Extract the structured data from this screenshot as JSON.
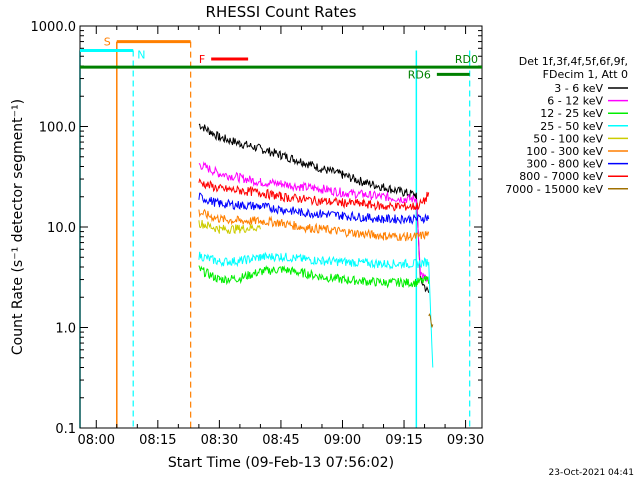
{
  "chart_data": {
    "type": "line",
    "title": "RHESSI Count Rates",
    "xlabel": "Start Time (09-Feb-13 07:56:02)",
    "ylabel": "Count Rate (s⁻¹ detector segment⁻¹)",
    "xscale": "time",
    "yscale": "log",
    "xlim": [
      "07:56:02",
      "09:34:00"
    ],
    "ylim": [
      0.1,
      1000
    ],
    "x_ticks": [
      "08:00",
      "08:15",
      "08:30",
      "08:45",
      "09:00",
      "09:15",
      "09:30"
    ],
    "y_ticks": [
      "0.1",
      "1.0",
      "10.0",
      "100.0",
      "1000.0"
    ],
    "grid": false,
    "legend": {
      "position": "right",
      "header": [
        "Det 1f,3f,4f,5f,6f,9f,",
        "FDecim 1, Att 0"
      ]
    },
    "series": [
      {
        "name": "3 - 6 keV",
        "color": "#000000",
        "values": [
          {
            "x": "08:25",
            "y": 105
          },
          {
            "x": "08:30",
            "y": 78
          },
          {
            "x": "08:35",
            "y": 68
          },
          {
            "x": "08:40",
            "y": 60
          },
          {
            "x": "08:45",
            "y": 52
          },
          {
            "x": "08:50",
            "y": 45
          },
          {
            "x": "08:55",
            "y": 38
          },
          {
            "x": "09:00",
            "y": 33
          },
          {
            "x": "09:05",
            "y": 28
          },
          {
            "x": "09:10",
            "y": 25
          },
          {
            "x": "09:15",
            "y": 22
          },
          {
            "x": "09:18",
            "y": 21
          },
          {
            "x": "09:19",
            "y": 3
          },
          {
            "x": "09:21",
            "y": 2.2
          }
        ]
      },
      {
        "name": "6 - 12 keV",
        "color": "#ff00ff",
        "values": [
          {
            "x": "08:25",
            "y": 42
          },
          {
            "x": "08:30",
            "y": 34
          },
          {
            "x": "08:35",
            "y": 31
          },
          {
            "x": "08:40",
            "y": 28
          },
          {
            "x": "08:45",
            "y": 27
          },
          {
            "x": "08:50",
            "y": 25
          },
          {
            "x": "08:55",
            "y": 24
          },
          {
            "x": "09:00",
            "y": 22
          },
          {
            "x": "09:05",
            "y": 21
          },
          {
            "x": "09:10",
            "y": 20
          },
          {
            "x": "09:15",
            "y": 19
          },
          {
            "x": "09:18",
            "y": 19
          },
          {
            "x": "09:19",
            "y": 3.5
          },
          {
            "x": "09:21",
            "y": 2.8
          }
        ]
      },
      {
        "name": "12 - 25 keV",
        "color": "#00ee00",
        "values": [
          {
            "x": "08:25",
            "y": 3.8
          },
          {
            "x": "08:30",
            "y": 3.0
          },
          {
            "x": "08:35",
            "y": 3.1
          },
          {
            "x": "08:40",
            "y": 3.6
          },
          {
            "x": "08:45",
            "y": 3.8
          },
          {
            "x": "08:50",
            "y": 3.5
          },
          {
            "x": "08:55",
            "y": 3.2
          },
          {
            "x": "09:00",
            "y": 3.0
          },
          {
            "x": "09:05",
            "y": 2.9
          },
          {
            "x": "09:10",
            "y": 2.8
          },
          {
            "x": "09:15",
            "y": 2.8
          },
          {
            "x": "09:18",
            "y": 2.8
          },
          {
            "x": "09:21",
            "y": 3.0
          }
        ]
      },
      {
        "name": "25 - 50 keV",
        "color": "#00ffff",
        "values": [
          {
            "x": "08:25",
            "y": 5.2
          },
          {
            "x": "08:30",
            "y": 4.5
          },
          {
            "x": "08:35",
            "y": 4.6
          },
          {
            "x": "08:40",
            "y": 5.0
          },
          {
            "x": "08:45",
            "y": 5.1
          },
          {
            "x": "08:50",
            "y": 4.8
          },
          {
            "x": "08:55",
            "y": 4.6
          },
          {
            "x": "09:00",
            "y": 4.5
          },
          {
            "x": "09:05",
            "y": 4.4
          },
          {
            "x": "09:10",
            "y": 4.3
          },
          {
            "x": "09:15",
            "y": 4.3
          },
          {
            "x": "09:18",
            "y": 4.3
          },
          {
            "x": "09:21",
            "y": 4.5
          },
          {
            "x": "09:22",
            "y": 0.4
          }
        ]
      },
      {
        "name": "50 - 100 keV",
        "color": "#cccc00",
        "values": [
          {
            "x": "08:25",
            "y": 11
          },
          {
            "x": "08:30",
            "y": 9.5
          },
          {
            "x": "08:35",
            "y": 9.6
          },
          {
            "x": "08:40",
            "y": 10
          }
        ]
      },
      {
        "name": "100 - 300 keV",
        "color": "#ff7f00",
        "values": [
          {
            "x": "08:25",
            "y": 14
          },
          {
            "x": "08:30",
            "y": 12
          },
          {
            "x": "08:35",
            "y": 11.5
          },
          {
            "x": "08:40",
            "y": 11.5
          },
          {
            "x": "08:45",
            "y": 11
          },
          {
            "x": "08:50",
            "y": 10
          },
          {
            "x": "08:55",
            "y": 9.5
          },
          {
            "x": "09:00",
            "y": 9
          },
          {
            "x": "09:05",
            "y": 8.5
          },
          {
            "x": "09:10",
            "y": 8.2
          },
          {
            "x": "09:15",
            "y": 8
          },
          {
            "x": "09:18",
            "y": 8
          },
          {
            "x": "09:21",
            "y": 8.5
          }
        ]
      },
      {
        "name": "300 - 800 keV",
        "color": "#0000ff",
        "values": [
          {
            "x": "08:25",
            "y": 20
          },
          {
            "x": "08:30",
            "y": 17
          },
          {
            "x": "08:35",
            "y": 16.5
          },
          {
            "x": "08:40",
            "y": 16
          },
          {
            "x": "08:45",
            "y": 15
          },
          {
            "x": "08:50",
            "y": 14
          },
          {
            "x": "08:55",
            "y": 13.5
          },
          {
            "x": "09:00",
            "y": 13
          },
          {
            "x": "09:05",
            "y": 12.5
          },
          {
            "x": "09:10",
            "y": 12
          },
          {
            "x": "09:15",
            "y": 12
          },
          {
            "x": "09:18",
            "y": 12
          },
          {
            "x": "09:21",
            "y": 12.5
          }
        ]
      },
      {
        "name": "800 - 7000 keV",
        "color": "#ff0000",
        "values": [
          {
            "x": "08:25",
            "y": 28
          },
          {
            "x": "08:30",
            "y": 24
          },
          {
            "x": "08:35",
            "y": 23
          },
          {
            "x": "08:40",
            "y": 22
          },
          {
            "x": "08:45",
            "y": 20
          },
          {
            "x": "08:50",
            "y": 19
          },
          {
            "x": "08:55",
            "y": 18
          },
          {
            "x": "09:00",
            "y": 17.5
          },
          {
            "x": "09:05",
            "y": 17
          },
          {
            "x": "09:10",
            "y": 16
          },
          {
            "x": "09:15",
            "y": 16
          },
          {
            "x": "09:18",
            "y": 16
          },
          {
            "x": "09:20",
            "y": 18
          },
          {
            "x": "09:21",
            "y": 22
          }
        ]
      },
      {
        "name": "7000 - 15000 keV",
        "color": "#a07000",
        "values": [
          {
            "x": "09:21",
            "y": 1.3
          },
          {
            "x": "09:22",
            "y": 1.0
          }
        ]
      }
    ],
    "annotations": [
      {
        "text": "S",
        "color": "#ff7f00",
        "start": "08:05",
        "end": "08:23"
      },
      {
        "text": "N",
        "color": "#00ffff",
        "start": "07:56:02",
        "end": "08:09"
      },
      {
        "text": "F",
        "color": "#ff0000",
        "start": "08:28",
        "end": "08:37"
      },
      {
        "text": "RD0",
        "color": "#008000",
        "start": "07:56:02",
        "end": "09:34"
      },
      {
        "text": "RD6",
        "color": "#008000",
        "start": "09:23",
        "end": "09:31"
      }
    ],
    "intervals": [
      {
        "name": "cyan-left",
        "color": "#00ffff",
        "x_start": "07:56:02",
        "x_end": "08:09",
        "level": 570,
        "start_style": "solid",
        "end_style": "dashed"
      },
      {
        "name": "orange",
        "color": "#ff7f00",
        "x_start": "08:05",
        "x_end": "08:23",
        "level": 700,
        "start_style": "solid",
        "end_style": "dashed"
      },
      {
        "name": "cyan-right",
        "color": "#00ffff",
        "x_start": "09:18",
        "x_end": "09:31",
        "level": 570,
        "start_style": "solid",
        "end_style": "dashed"
      }
    ]
  },
  "footer": {
    "timestamp": "23-Oct-2021 04:41"
  }
}
